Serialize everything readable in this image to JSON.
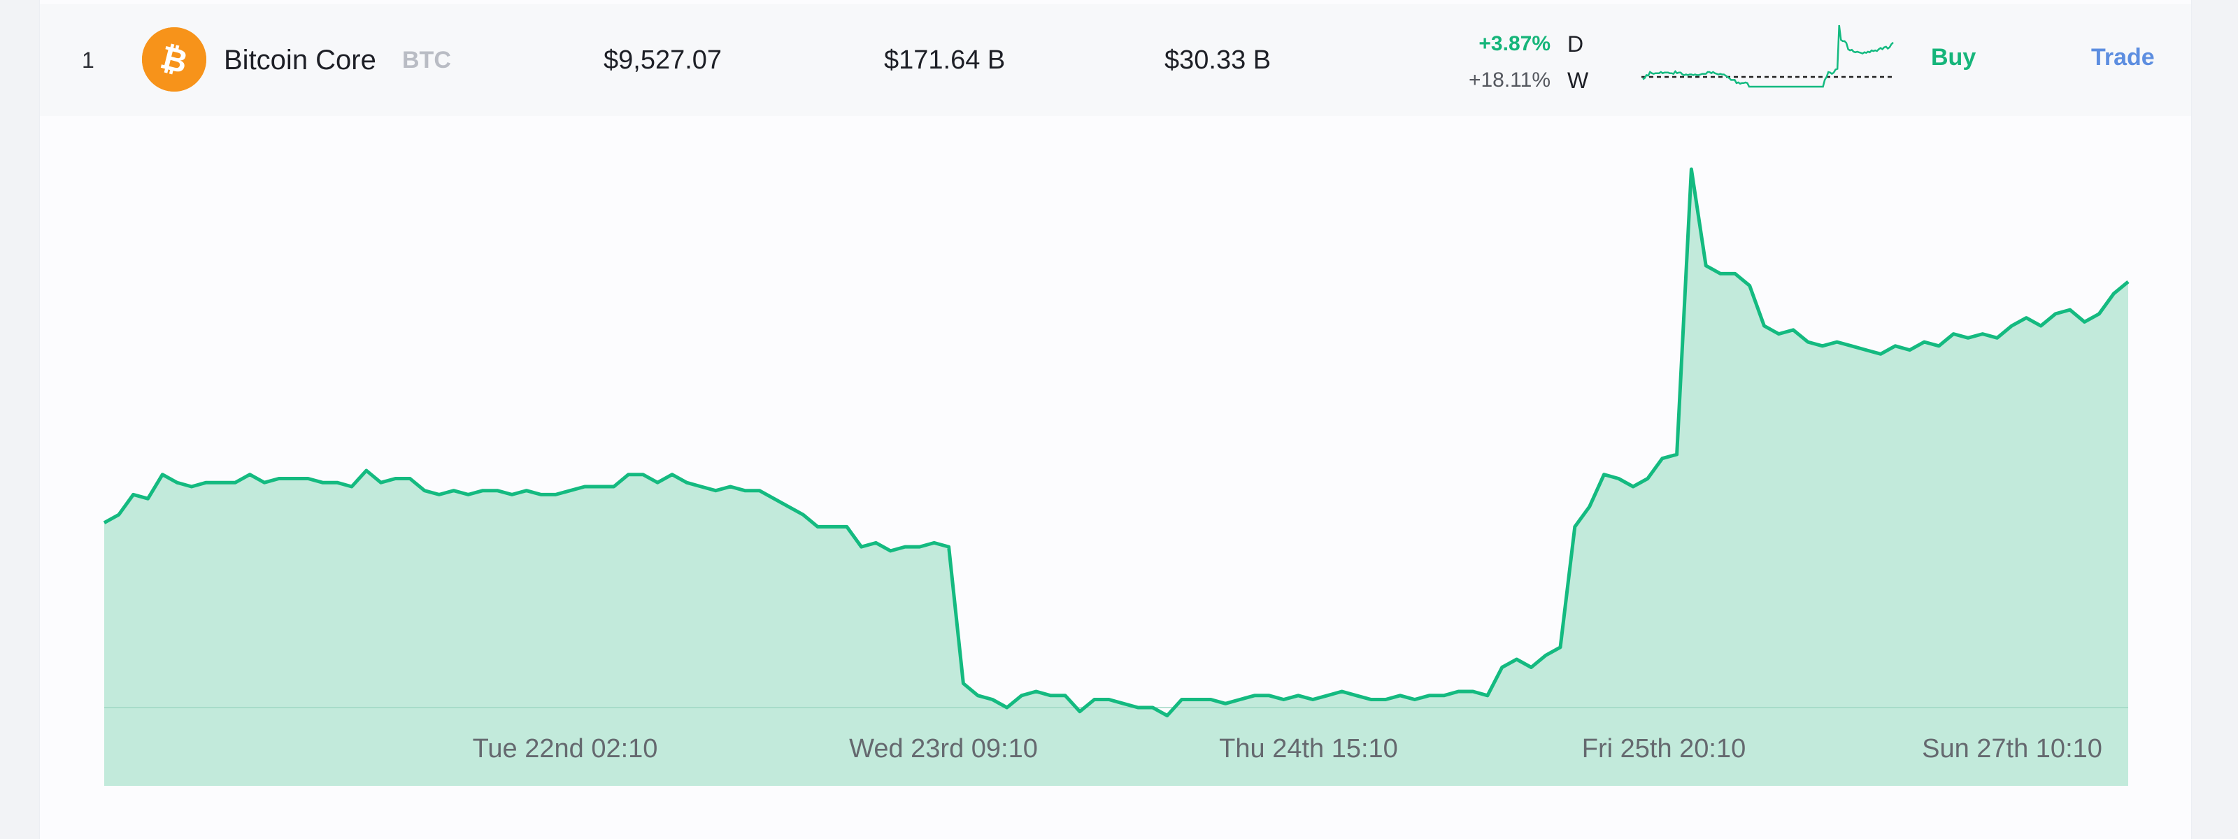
{
  "coin": {
    "rank": "1",
    "name": "Bitcoin Core",
    "symbol": "BTC",
    "logo_icon": "bitcoin-icon",
    "logo_color": "#f7931a",
    "logo_glyph": "₿",
    "price": "$9,527.07",
    "market_cap": "$171.64 B",
    "volume": "$30.33 B",
    "change_day": "+3.87%",
    "change_day_label": "D",
    "change_week": "+18.11%",
    "change_week_label": "W"
  },
  "actions": {
    "buy_label": "Buy",
    "trade_label": "Trade"
  },
  "colors": {
    "positive": "#16b57a",
    "trade": "#5d8ee0",
    "area_fill": "#c2eadb",
    "line": "#14ba80"
  },
  "chart_data": {
    "type": "area",
    "x_ticks": [
      "Tue 22nd 02:10",
      "Wed 23rd 09:10",
      "Thu 24th 15:10",
      "Fri 25th 20:10",
      "Sun 27th 10:10"
    ],
    "baseline": "dashed-line",
    "series": [
      {
        "values": [
          0.46,
          0.48,
          0.53,
          0.52,
          0.58,
          0.56,
          0.55,
          0.56,
          0.56,
          0.56,
          0.58,
          0.56,
          0.57,
          0.57,
          0.57,
          0.56,
          0.56,
          0.55,
          0.59,
          0.56,
          0.57,
          0.57,
          0.54,
          0.53,
          0.54,
          0.53,
          0.54,
          0.54,
          0.53,
          0.54,
          0.53,
          0.53,
          0.54,
          0.55,
          0.55,
          0.55,
          0.58,
          0.58,
          0.56,
          0.58,
          0.56,
          0.55,
          0.54,
          0.55,
          0.54,
          0.54,
          0.52,
          0.5,
          0.48,
          0.45,
          0.45,
          0.45,
          0.4,
          0.41,
          0.39,
          0.4,
          0.4,
          0.41,
          0.4,
          0.06,
          0.03,
          0.02,
          0.0,
          0.03,
          0.04,
          0.03,
          0.03,
          -0.01,
          0.02,
          0.02,
          0.01,
          0.0,
          0.0,
          -0.02,
          0.02,
          0.02,
          0.02,
          0.01,
          0.02,
          0.03,
          0.03,
          0.02,
          0.03,
          0.02,
          0.03,
          0.04,
          0.03,
          0.02,
          0.02,
          0.03,
          0.02,
          0.03,
          0.03,
          0.04,
          0.04,
          0.03,
          0.1,
          0.12,
          0.1,
          0.13,
          0.15,
          0.45,
          0.5,
          0.58,
          0.57,
          0.55,
          0.57,
          0.62,
          0.63,
          1.34,
          1.1,
          1.08,
          1.08,
          1.05,
          0.95,
          0.93,
          0.94,
          0.91,
          0.9,
          0.91,
          0.9,
          0.89,
          0.88,
          0.9,
          0.89,
          0.91,
          0.9,
          0.93,
          0.92,
          0.93,
          0.92,
          0.95,
          0.97,
          0.95,
          0.98,
          0.99,
          0.96,
          0.98,
          1.03,
          1.06
        ]
      }
    ],
    "y_ticks": [],
    "grid": false,
    "legend": "none"
  }
}
